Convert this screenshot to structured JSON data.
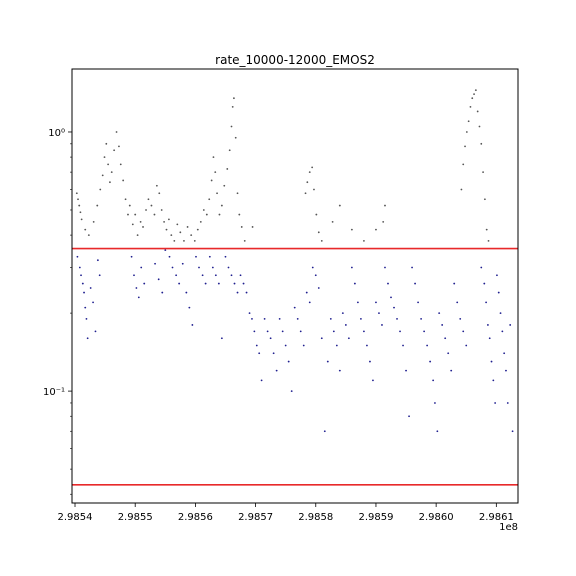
{
  "chart_data": {
    "type": "scatter",
    "title": "rate_10000-12000_EMOS2",
    "xlabel": "",
    "ylabel": "",
    "xscale": "linear",
    "yscale": "log",
    "xlim": [
      298539500,
      298613600
    ],
    "ylim": [
      0.037,
      1.75
    ],
    "x_tick_values": [
      298540000,
      298550000,
      298560000,
      298570000,
      298580000,
      298590000,
      298600000,
      298610000
    ],
    "x_tick_labels": [
      "2.9854",
      "2.9855",
      "2.9856",
      "2.9857",
      "2.9858",
      "2.9859",
      "2.9860",
      "2.9861"
    ],
    "x_offset_label": "1e8",
    "y_tick_values": [
      0.1,
      1.0
    ],
    "y_tick_labels": [
      "10⁻¹",
      "10⁰"
    ],
    "grid": false,
    "legend": "none",
    "thresholds": [
      {
        "value": 0.355,
        "color": "#e8292a"
      },
      {
        "value": 0.0435,
        "color": "#e8292a"
      }
    ],
    "series": [
      {
        "color": "#555555",
        "points": [
          [
            298540300,
            0.58
          ],
          [
            298540500,
            0.55
          ],
          [
            298540700,
            0.52
          ],
          [
            298540900,
            0.49
          ],
          [
            298541100,
            0.46
          ],
          [
            298541700,
            0.42
          ],
          [
            298542300,
            0.4
          ],
          [
            298543100,
            0.45
          ],
          [
            298543700,
            0.52
          ],
          [
            298544200,
            0.6
          ],
          [
            298544600,
            0.68
          ],
          [
            298544900,
            0.8
          ],
          [
            298545200,
            0.9
          ],
          [
            298545500,
            0.75
          ],
          [
            298545800,
            0.64
          ],
          [
            298546100,
            0.7
          ],
          [
            298546500,
            0.85
          ],
          [
            298546900,
            1.0
          ],
          [
            298547300,
            0.88
          ],
          [
            298547600,
            0.75
          ],
          [
            298548000,
            0.65
          ],
          [
            298548400,
            0.55
          ],
          [
            298548800,
            0.48
          ],
          [
            298549100,
            0.52
          ],
          [
            298549600,
            0.44
          ],
          [
            298550000,
            0.48
          ],
          [
            298550400,
            0.4
          ],
          [
            298550900,
            0.45
          ],
          [
            298551300,
            0.43
          ],
          [
            298551800,
            0.5
          ],
          [
            298552200,
            0.55
          ],
          [
            298552700,
            0.52
          ],
          [
            298553200,
            0.48
          ],
          [
            298553600,
            0.62
          ],
          [
            298554000,
            0.58
          ],
          [
            298554400,
            0.5
          ],
          [
            298554800,
            0.45
          ],
          [
            298555200,
            0.42
          ],
          [
            298555600,
            0.46
          ],
          [
            298556000,
            0.4
          ],
          [
            298556500,
            0.38
          ],
          [
            298557000,
            0.44
          ],
          [
            298557500,
            0.41
          ],
          [
            298558100,
            0.38
          ],
          [
            298558700,
            0.43
          ],
          [
            298559300,
            0.4
          ],
          [
            298559900,
            0.38
          ],
          [
            298560400,
            0.42
          ],
          [
            298560900,
            0.45
          ],
          [
            298561400,
            0.5
          ],
          [
            298561900,
            0.48
          ],
          [
            298562300,
            0.55
          ],
          [
            298562700,
            0.65
          ],
          [
            298563000,
            0.8
          ],
          [
            298563300,
            0.7
          ],
          [
            298563600,
            0.58
          ],
          [
            298564000,
            0.48
          ],
          [
            298564400,
            0.52
          ],
          [
            298564800,
            0.62
          ],
          [
            298565300,
            0.72
          ],
          [
            298565700,
            0.85
          ],
          [
            298566000,
            1.05
          ],
          [
            298566200,
            1.25
          ],
          [
            298566400,
            1.35
          ],
          [
            298566700,
            0.95
          ],
          [
            298567000,
            0.58
          ],
          [
            298567300,
            0.48
          ],
          [
            298567700,
            0.43
          ],
          [
            298568200,
            0.38
          ],
          [
            298569500,
            0.43
          ],
          [
            298578300,
            0.58
          ],
          [
            298578600,
            0.64
          ],
          [
            298579000,
            0.7
          ],
          [
            298579400,
            0.73
          ],
          [
            298579700,
            0.6
          ],
          [
            298580100,
            0.48
          ],
          [
            298580500,
            0.41
          ],
          [
            298581000,
            0.38
          ],
          [
            298582800,
            0.45
          ],
          [
            298584000,
            0.52
          ],
          [
            298586000,
            0.42
          ],
          [
            298588000,
            0.38
          ],
          [
            298590000,
            0.42
          ],
          [
            298591200,
            0.45
          ],
          [
            298591500,
            0.52
          ],
          [
            298604200,
            0.6
          ],
          [
            298604500,
            0.75
          ],
          [
            298604800,
            0.88
          ],
          [
            298605100,
            1.0
          ],
          [
            298605400,
            1.1
          ],
          [
            298605700,
            1.25
          ],
          [
            298606000,
            1.35
          ],
          [
            298606300,
            1.4
          ],
          [
            298606600,
            1.45
          ],
          [
            298606900,
            1.2
          ],
          [
            298607200,
            1.05
          ],
          [
            298607500,
            0.9
          ],
          [
            298607800,
            0.7
          ],
          [
            298608100,
            0.55
          ],
          [
            298608400,
            0.42
          ],
          [
            298608700,
            0.38
          ]
        ]
      },
      {
        "color": "#1f1f8f",
        "points": [
          [
            298540400,
            0.33
          ],
          [
            298540800,
            0.3
          ],
          [
            298541000,
            0.28
          ],
          [
            298541300,
            0.26
          ],
          [
            298541500,
            0.24
          ],
          [
            298541700,
            0.21
          ],
          [
            298541900,
            0.19
          ],
          [
            298542100,
            0.16
          ],
          [
            298542600,
            0.25
          ],
          [
            298543000,
            0.22
          ],
          [
            298543400,
            0.17
          ],
          [
            298543800,
            0.32
          ],
          [
            298544100,
            0.28
          ],
          [
            298549400,
            0.33
          ],
          [
            298549800,
            0.28
          ],
          [
            298550200,
            0.25
          ],
          [
            298550600,
            0.23
          ],
          [
            298551000,
            0.3
          ],
          [
            298551500,
            0.26
          ],
          [
            298553300,
            0.31
          ],
          [
            298553900,
            0.27
          ],
          [
            298554500,
            0.24
          ],
          [
            298555000,
            0.35
          ],
          [
            298555700,
            0.33
          ],
          [
            298556200,
            0.3
          ],
          [
            298556800,
            0.28
          ],
          [
            298557300,
            0.26
          ],
          [
            298557900,
            0.31
          ],
          [
            298558500,
            0.24
          ],
          [
            298559000,
            0.21
          ],
          [
            298559500,
            0.18
          ],
          [
            298560100,
            0.33
          ],
          [
            298560600,
            0.3
          ],
          [
            298561200,
            0.28
          ],
          [
            298561700,
            0.26
          ],
          [
            298562400,
            0.33
          ],
          [
            298562900,
            0.3
          ],
          [
            298563400,
            0.28
          ],
          [
            298563900,
            0.26
          ],
          [
            298564400,
            0.16
          ],
          [
            298565000,
            0.33
          ],
          [
            298565500,
            0.3
          ],
          [
            298566000,
            0.28
          ],
          [
            298566500,
            0.26
          ],
          [
            298567000,
            0.24
          ],
          [
            298567500,
            0.28
          ],
          [
            298568000,
            0.26
          ],
          [
            298568500,
            0.24
          ],
          [
            298569000,
            0.2
          ],
          [
            298569400,
            0.19
          ],
          [
            298569800,
            0.17
          ],
          [
            298570200,
            0.15
          ],
          [
            298570600,
            0.14
          ],
          [
            298571000,
            0.11
          ],
          [
            298571500,
            0.19
          ],
          [
            298572000,
            0.17
          ],
          [
            298572500,
            0.16
          ],
          [
            298573000,
            0.14
          ],
          [
            298573500,
            0.12
          ],
          [
            298574000,
            0.19
          ],
          [
            298574500,
            0.17
          ],
          [
            298575000,
            0.15
          ],
          [
            298575500,
            0.13
          ],
          [
            298576000,
            0.1
          ],
          [
            298576500,
            0.21
          ],
          [
            298577000,
            0.19
          ],
          [
            298577500,
            0.17
          ],
          [
            298578000,
            0.15
          ],
          [
            298578500,
            0.24
          ],
          [
            298579000,
            0.22
          ],
          [
            298579500,
            0.3
          ],
          [
            298580000,
            0.28
          ],
          [
            298580500,
            0.25
          ],
          [
            298581000,
            0.16
          ],
          [
            298581500,
            0.07
          ],
          [
            298582000,
            0.13
          ],
          [
            298582500,
            0.19
          ],
          [
            298583000,
            0.17
          ],
          [
            298583500,
            0.15
          ],
          [
            298584000,
            0.12
          ],
          [
            298584500,
            0.2
          ],
          [
            298585000,
            0.18
          ],
          [
            298585500,
            0.16
          ],
          [
            298586000,
            0.3
          ],
          [
            298586500,
            0.26
          ],
          [
            298587000,
            0.22
          ],
          [
            298587500,
            0.19
          ],
          [
            298588000,
            0.17
          ],
          [
            298588500,
            0.15
          ],
          [
            298589000,
            0.13
          ],
          [
            298589500,
            0.11
          ],
          [
            298590000,
            0.22
          ],
          [
            298590500,
            0.2
          ],
          [
            298591000,
            0.18
          ],
          [
            298591500,
            0.3
          ],
          [
            298592000,
            0.26
          ],
          [
            298592500,
            0.23
          ],
          [
            298593000,
            0.21
          ],
          [
            298593500,
            0.19
          ],
          [
            298594000,
            0.17
          ],
          [
            298594500,
            0.15
          ],
          [
            298595000,
            0.12
          ],
          [
            298595500,
            0.08
          ],
          [
            298596000,
            0.3
          ],
          [
            298596500,
            0.26
          ],
          [
            298597000,
            0.22
          ],
          [
            298597500,
            0.19
          ],
          [
            298598000,
            0.17
          ],
          [
            298598500,
            0.15
          ],
          [
            298599000,
            0.13
          ],
          [
            298599500,
            0.11
          ],
          [
            298599800,
            0.09
          ],
          [
            298600200,
            0.07
          ],
          [
            298600500,
            0.2
          ],
          [
            298601000,
            0.18
          ],
          [
            298601500,
            0.16
          ],
          [
            298602000,
            0.14
          ],
          [
            298602500,
            0.12
          ],
          [
            298603000,
            0.26
          ],
          [
            298603500,
            0.22
          ],
          [
            298604000,
            0.19
          ],
          [
            298604500,
            0.17
          ],
          [
            298605000,
            0.15
          ],
          [
            298607500,
            0.3
          ],
          [
            298608000,
            0.26
          ],
          [
            298608300,
            0.22
          ],
          [
            298608600,
            0.18
          ],
          [
            298608900,
            0.16
          ],
          [
            298609200,
            0.13
          ],
          [
            298609500,
            0.11
          ],
          [
            298609800,
            0.09
          ],
          [
            298610100,
            0.28
          ],
          [
            298610400,
            0.24
          ],
          [
            298610700,
            0.2
          ],
          [
            298611000,
            0.17
          ],
          [
            298611300,
            0.14
          ],
          [
            298611600,
            0.12
          ],
          [
            298611900,
            0.09
          ],
          [
            298612300,
            0.18
          ],
          [
            298612700,
            0.07
          ]
        ]
      }
    ]
  }
}
